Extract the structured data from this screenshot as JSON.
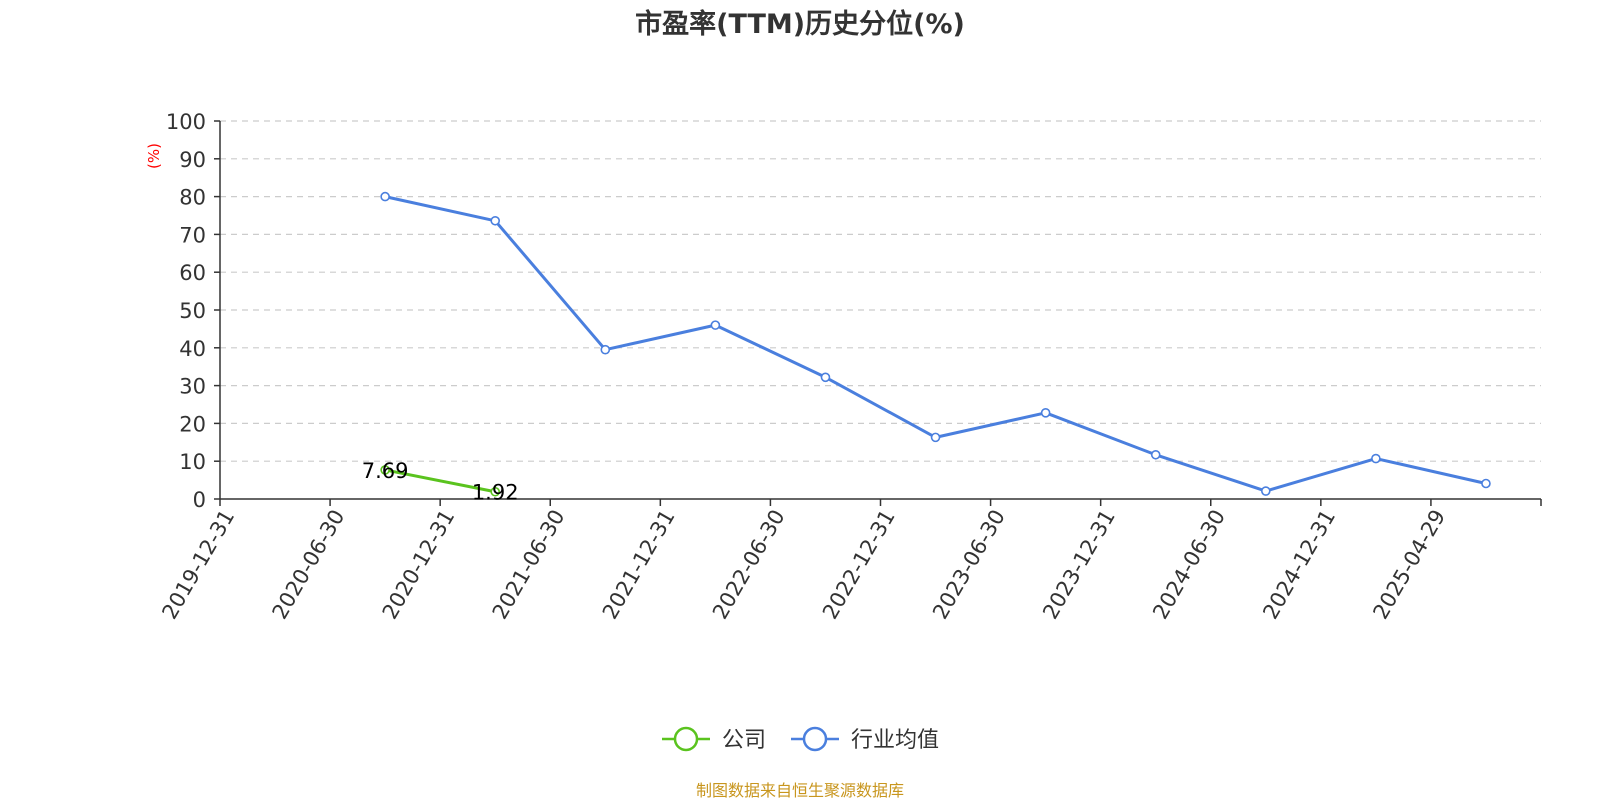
{
  "chart_data": {
    "type": "line",
    "title": "市盈率(TTM)历史分位(%)",
    "ylabel": "(%)",
    "ylim": [
      0,
      100
    ],
    "yticks": [
      0,
      10,
      20,
      30,
      40,
      50,
      60,
      70,
      80,
      90,
      100
    ],
    "grid": true,
    "categories": [
      "2019-12-31",
      "2020-06-30",
      "2020-12-31",
      "2021-06-30",
      "2021-12-31",
      "2022-06-30",
      "2022-12-31",
      "2023-06-30",
      "2023-12-31",
      "2024-06-30",
      "2024-12-31",
      "2025-04-29"
    ],
    "series": [
      {
        "name": "公司",
        "color": "#5ac31e",
        "values": [
          null,
          7.69,
          1.92,
          null,
          null,
          null,
          null,
          null,
          null,
          null,
          null,
          null
        ],
        "data_labels": [
          null,
          "7.69",
          "1.92",
          null,
          null,
          null,
          null,
          null,
          null,
          null,
          null,
          null
        ]
      },
      {
        "name": "行业均值",
        "color": "#4a7fde",
        "values": [
          null,
          80,
          73.6,
          39.5,
          46,
          32.2,
          16.3,
          22.8,
          11.7,
          2.1,
          10.7,
          4.1
        ]
      }
    ],
    "legend_position": "bottom-center",
    "source": "制图数据来自恒生聚源数据库"
  }
}
